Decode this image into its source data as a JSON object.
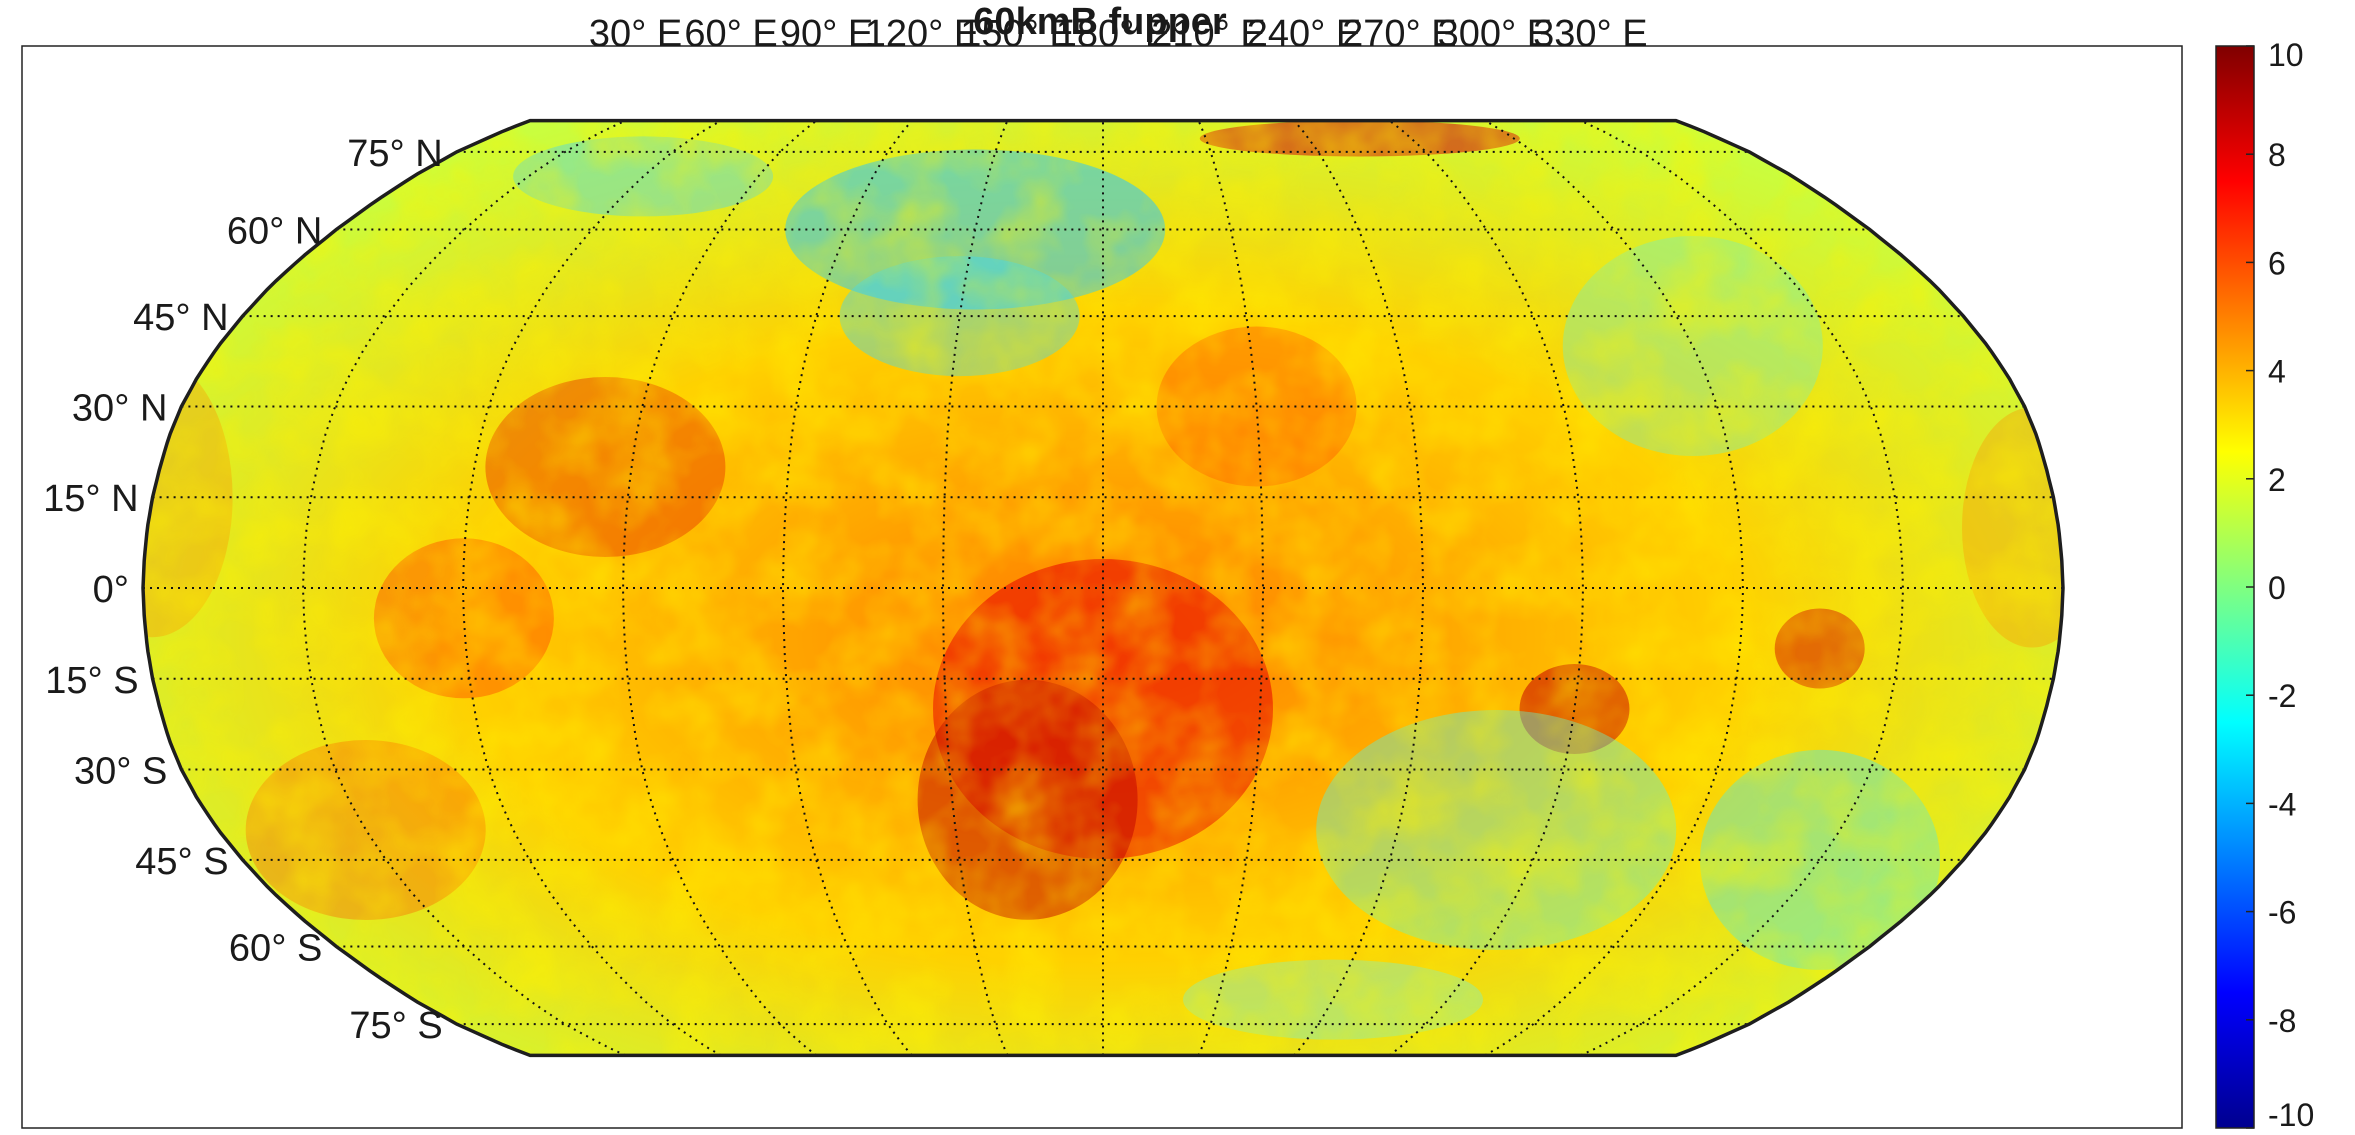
{
  "figure": {
    "title": "60kmB fupper"
  },
  "map": {
    "projection": "Robinson",
    "grid": true,
    "grid_style": "dotted",
    "parallels": [
      {
        "value": 75,
        "label": "75° N"
      },
      {
        "value": 60,
        "label": "60° N"
      },
      {
        "value": 45,
        "label": "45° N"
      },
      {
        "value": 30,
        "label": "30° N"
      },
      {
        "value": 15,
        "label": "15° N"
      },
      {
        "value": 0,
        "label": "0°"
      },
      {
        "value": -15,
        "label": "15° S"
      },
      {
        "value": -30,
        "label": "30° S"
      },
      {
        "value": -45,
        "label": "45° S"
      },
      {
        "value": -60,
        "label": "60° S"
      },
      {
        "value": -75,
        "label": "75° S"
      }
    ],
    "meridians": [
      {
        "value": 30,
        "label": "30° E"
      },
      {
        "value": 60,
        "label": "60° E"
      },
      {
        "value": 90,
        "label": "90° E"
      },
      {
        "value": 120,
        "label": "120° E"
      },
      {
        "value": 150,
        "label": "150° E"
      },
      {
        "value": 180,
        "label": "180° E"
      },
      {
        "value": 210,
        "label": "210° E"
      },
      {
        "value": 240,
        "label": "240° E"
      },
      {
        "value": 270,
        "label": "270° E"
      },
      {
        "value": 300,
        "label": "300° E"
      },
      {
        "value": 330,
        "label": "330° E"
      }
    ]
  },
  "colorbar": {
    "colormap": "jet",
    "range": [
      -10,
      10
    ],
    "ticks": [
      {
        "value": 10,
        "label": "10"
      },
      {
        "value": 8,
        "label": "8"
      },
      {
        "value": 6,
        "label": "6"
      },
      {
        "value": 4,
        "label": "4"
      },
      {
        "value": 2,
        "label": "2"
      },
      {
        "value": 0,
        "label": "0"
      },
      {
        "value": -2,
        "label": "-2"
      },
      {
        "value": -4,
        "label": "-4"
      },
      {
        "value": -6,
        "label": "-6"
      },
      {
        "value": -8,
        "label": "-8"
      },
      {
        "value": -10,
        "label": "-10"
      }
    ],
    "colors": [
      "#00008f",
      "#0000ff",
      "#0080ff",
      "#00ffff",
      "#80ff80",
      "#ffff00",
      "#ff8000",
      "#ff0000",
      "#800000"
    ]
  }
}
